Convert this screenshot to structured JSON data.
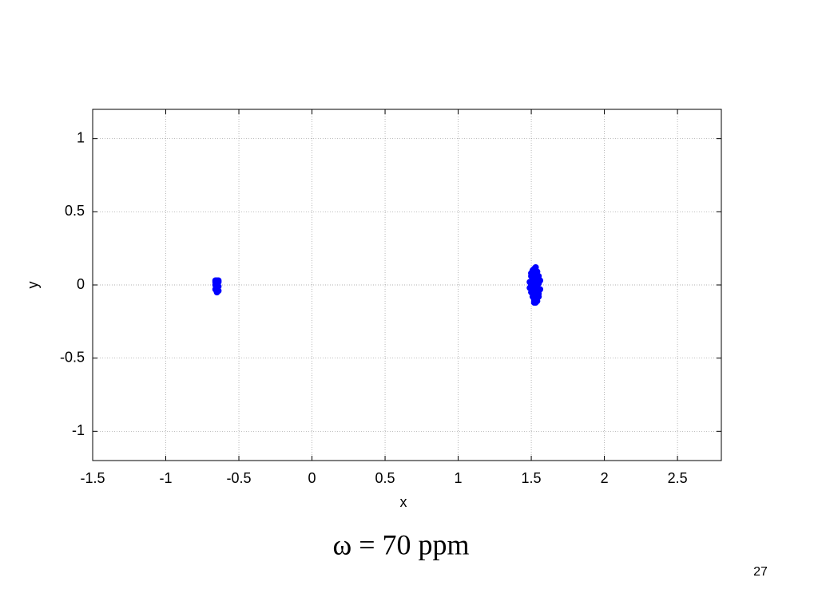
{
  "chart_data": {
    "type": "scatter",
    "xlabel": "x",
    "ylabel": "y",
    "x": [
      -0.66,
      -0.65,
      -0.64,
      -0.66,
      -0.65,
      -0.64,
      -0.66,
      -0.65,
      -0.64,
      -0.65,
      -0.66,
      -0.64,
      1.49,
      1.5,
      1.51,
      1.52,
      1.53,
      1.54,
      1.55,
      1.56,
      1.49,
      1.5,
      1.51,
      1.52,
      1.53,
      1.54,
      1.55,
      1.56,
      1.5,
      1.51,
      1.52,
      1.53,
      1.54,
      1.55,
      1.51,
      1.52,
      1.53,
      1.54,
      1.52,
      1.53,
      1.5,
      1.55,
      1.51,
      1.54,
      1.52,
      1.53
    ],
    "y": [
      0.03,
      0.03,
      0.02,
      0.0,
      0.01,
      -0.01,
      -0.03,
      -0.02,
      -0.04,
      -0.05,
      0.02,
      0.03,
      0.02,
      0.06,
      0.09,
      0.11,
      0.12,
      0.09,
      0.06,
      0.03,
      -0.02,
      -0.05,
      -0.08,
      -0.1,
      -0.12,
      -0.11,
      -0.08,
      -0.03,
      0.0,
      0.03,
      0.05,
      0.07,
      0.04,
      0.01,
      -0.03,
      -0.06,
      -0.09,
      -0.05,
      -0.12,
      -0.02,
      0.08,
      -0.06,
      0.1,
      0.0,
      0.02,
      0.0
    ],
    "color": "#0000ff",
    "xlim": [
      -1.5,
      2.8
    ],
    "xticks": [
      -1.5,
      -1,
      -0.5,
      0,
      0.5,
      1,
      1.5,
      2,
      2.5
    ],
    "ylim": [
      -1.2,
      1.2
    ],
    "yticks": [
      -1,
      -0.5,
      0,
      0.5,
      1
    ],
    "grid": true
  },
  "caption": "ω = 70 ppm",
  "page_number": "27"
}
